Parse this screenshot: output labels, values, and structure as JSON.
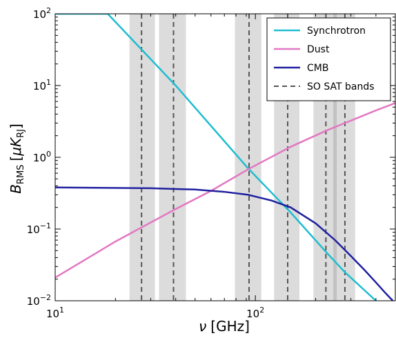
{
  "chart_data": {
    "type": "line",
    "xlabel_symbol": "ν",
    "xlabel_unit": "[GHz]",
    "ylabel_main": "B",
    "ylabel_sub": "RMS",
    "ylabel_unit_open": "[",
    "ylabel_unit_mu": "μ",
    "ylabel_unit_k": "K",
    "ylabel_unit_sub": "RJ",
    "ylabel_unit_close": "]",
    "x_scale": "log",
    "y_scale": "log",
    "xlim": [
      10,
      500
    ],
    "ylim": [
      0.01,
      100
    ],
    "x_ticks": [
      {
        "value": 10,
        "base": "10",
        "exp": "1"
      },
      {
        "value": 100,
        "base": "10",
        "exp": "2"
      }
    ],
    "y_ticks": [
      {
        "value": 0.01,
        "base": "10",
        "exp": "−2"
      },
      {
        "value": 0.1,
        "base": "10",
        "exp": "−1"
      },
      {
        "value": 1,
        "base": "10",
        "exp": "0"
      },
      {
        "value": 10,
        "base": "10",
        "exp": "1"
      },
      {
        "value": 100,
        "base": "10",
        "exp": "2"
      }
    ],
    "grid": false,
    "legend_position": "top-right",
    "series": [
      {
        "name": "Synchrotron",
        "color": "#1ebdcf",
        "style": "solid",
        "x": [
          10,
          18.3,
          40,
          92,
          150,
          230,
          280,
          400,
          500
        ],
        "y": [
          100,
          100,
          10,
          0.7,
          0.17,
          0.045,
          0.025,
          0.01,
          0.0055
        ]
      },
      {
        "name": "Dust",
        "color": "#e377c2",
        "style": "solid",
        "x": [
          10,
          20,
          40,
          60,
          92,
          150,
          230,
          280,
          400,
          500
        ],
        "y": [
          0.021,
          0.067,
          0.19,
          0.34,
          0.68,
          1.4,
          2.4,
          3.0,
          4.5,
          5.7
        ]
      },
      {
        "name": "CMB",
        "color": "#1f1fa0",
        "style": "solid",
        "x": [
          10,
          30,
          50,
          70,
          92,
          120,
          150,
          200,
          250,
          300,
          350,
          400,
          450,
          500
        ],
        "y": [
          0.38,
          0.37,
          0.355,
          0.33,
          0.3,
          0.25,
          0.2,
          0.12,
          0.07,
          0.042,
          0.027,
          0.018,
          0.0125,
          0.0092
        ]
      },
      {
        "name": "SO SAT bands",
        "color": "#555555",
        "style": "dashed"
      }
    ],
    "bands": [
      {
        "center": 27,
        "low": 23.5,
        "high": 31.5
      },
      {
        "center": 39,
        "low": 33,
        "high": 45
      },
      {
        "center": 93,
        "low": 79,
        "high": 107
      },
      {
        "center": 145,
        "low": 124,
        "high": 166
      },
      {
        "center": 225,
        "low": 195,
        "high": 255
      },
      {
        "center": 280,
        "low": 245,
        "high": 315
      }
    ]
  }
}
